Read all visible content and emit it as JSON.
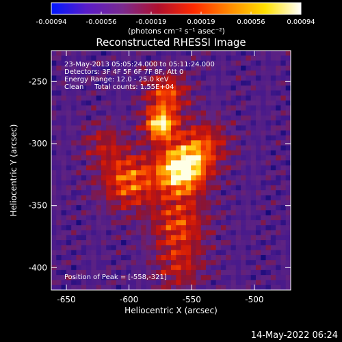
{
  "chart_data": {
    "type": "heatmap",
    "title": "Reconstructed RHESSI Image",
    "xlabel": "Heliocentric X (arcsec)",
    "ylabel": "Heliocentric Y (arcsec)",
    "xlim": [
      -662,
      -471
    ],
    "ylim": [
      -418,
      -225
    ],
    "x_ticks": [
      -650,
      -600,
      -550,
      -500
    ],
    "y_ticks": [
      -250,
      -300,
      -350,
      -400
    ],
    "colorbar": {
      "range": [
        -0.00094,
        0.00094
      ],
      "ticks": [
        "-0.00094",
        "-0.00056",
        "-0.00019",
        "0.00019",
        "0.00056",
        "0.00094"
      ],
      "unit_label": "(photons cm⁻² s⁻¹ asec⁻²)",
      "colors": [
        "#0018ff",
        "#5a1cc8",
        "#7a2a8e",
        "#b0102e",
        "#ff2a00",
        "#ff8a00",
        "#ffe000",
        "#ffffff"
      ]
    },
    "annotations": [
      "23-May-2013 05:05:24.000 to 05:11:24.000",
      "Detectors: 3F 4F 5F 6F 7F 8F, Att 0",
      "Energy Range: 12.0 - 25.0 keV",
      "Clean     Total counts: 1.55E+04"
    ],
    "peak_label": "Position of Peak = [-558,-321]",
    "peak": {
      "x": -558,
      "y": -321
    },
    "sources": [
      {
        "x": -558,
        "y": -321,
        "amp": 1.0,
        "sigma": 14
      },
      {
        "x": -575,
        "y": -285,
        "amp": 0.85,
        "sigma": 9
      },
      {
        "x": -600,
        "y": -330,
        "amp": 0.6,
        "sigma": 16
      },
      {
        "x": -570,
        "y": -260,
        "amp": 0.55,
        "sigma": 12
      },
      {
        "x": -540,
        "y": -300,
        "amp": 0.45,
        "sigma": 14
      },
      {
        "x": -560,
        "y": -365,
        "amp": 0.5,
        "sigma": 16
      },
      {
        "x": -560,
        "y": -400,
        "amp": 0.35,
        "sigma": 14
      },
      {
        "x": -620,
        "y": -300,
        "amp": 0.3,
        "sigma": 12
      }
    ]
  },
  "footer": {
    "timestamp": "14-May-2022 06:24"
  }
}
